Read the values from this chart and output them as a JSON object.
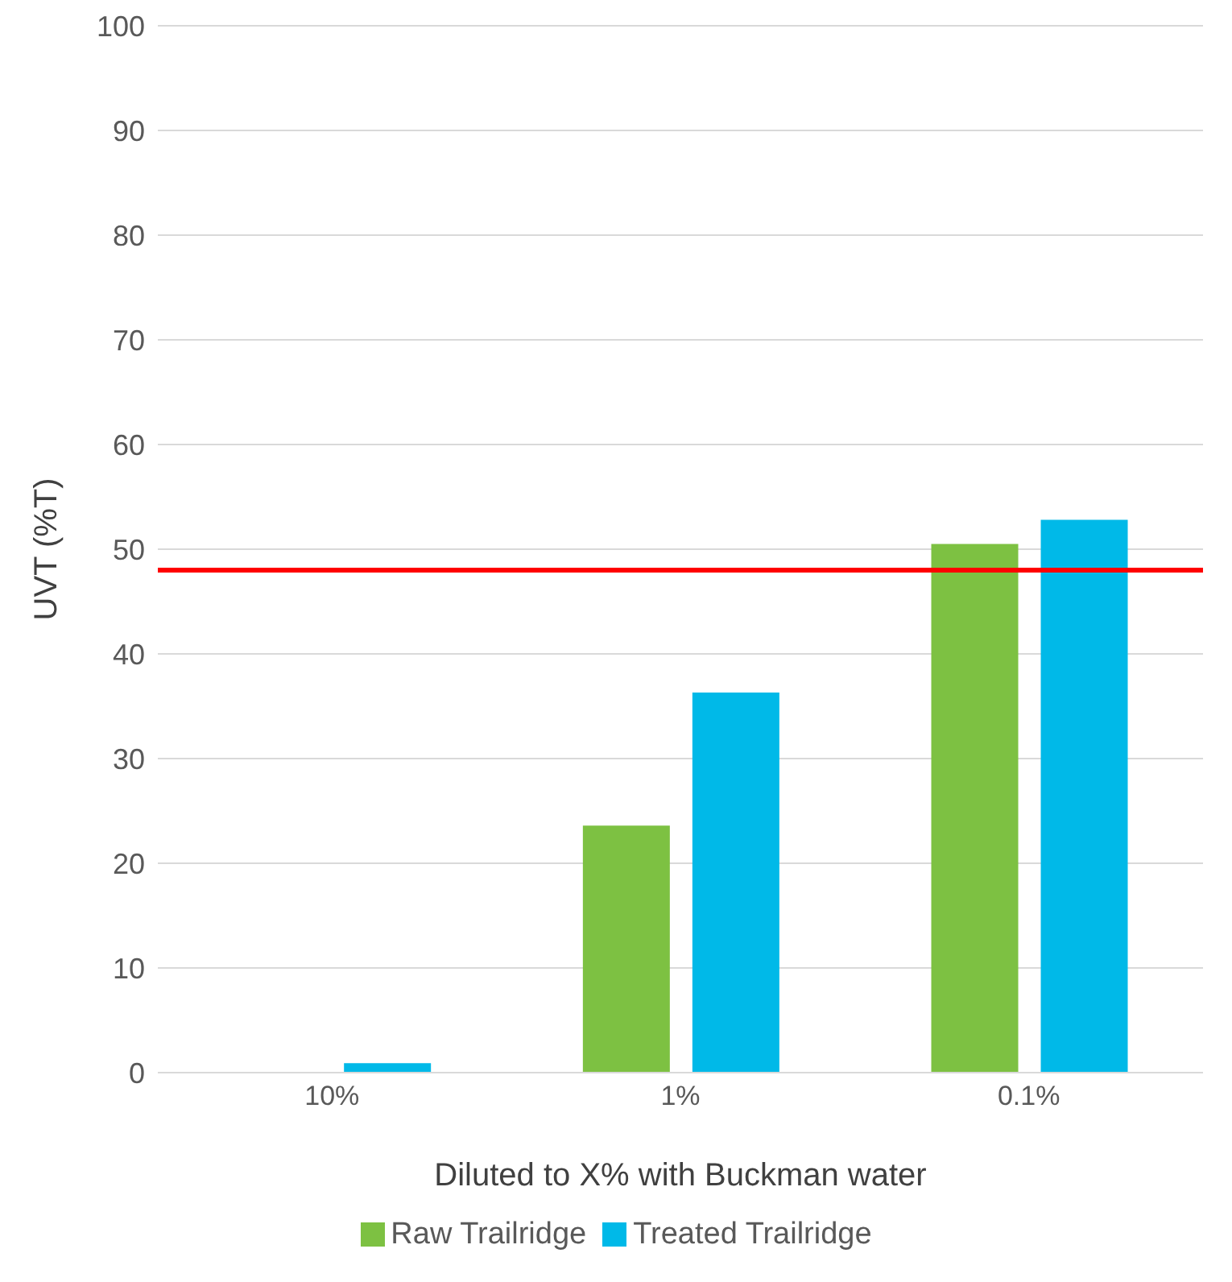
{
  "chart_data": {
    "type": "bar",
    "xlabel": "Diluted to X% with Buckman water",
    "ylabel": "UVT (%T)",
    "categories": [
      "10%",
      "1%",
      "0.1%"
    ],
    "series": [
      {
        "name": "Raw Trailridge",
        "color": "#7dc142",
        "values": [
          0,
          23.6,
          50.5
        ]
      },
      {
        "name": "Treated Trailridge",
        "color": "#00b9e8",
        "values": [
          0.9,
          36.3,
          52.8
        ]
      }
    ],
    "ylim": [
      0,
      100
    ],
    "yticks": [
      0,
      10,
      20,
      30,
      40,
      50,
      60,
      70,
      80,
      90,
      100
    ],
    "grid": "y",
    "legend": "bottom",
    "ref_lines": [
      {
        "axis": "y",
        "value": 48,
        "color": "#ff0000"
      }
    ]
  }
}
